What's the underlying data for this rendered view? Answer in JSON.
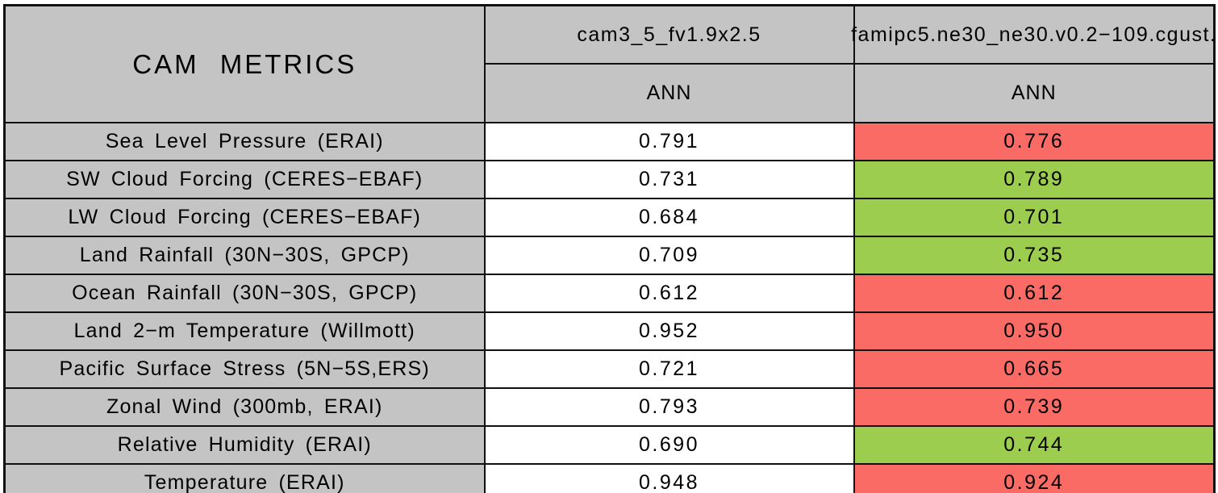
{
  "table": {
    "title": "CAM METRICS",
    "columns": [
      {
        "model": "cam3_5_fv1.9x2.5",
        "season": "ANN"
      },
      {
        "model": "famipc5.ne30_ne30.v0.2−109.cgust.",
        "season": "ANN"
      }
    ],
    "rows": [
      {
        "metric": "Sea Level Pressure (ERAI)",
        "values": [
          "0.791",
          "0.776"
        ],
        "highlight2": "red"
      },
      {
        "metric": "SW Cloud Forcing (CERES−EBAF)",
        "values": [
          "0.731",
          "0.789"
        ],
        "highlight2": "green"
      },
      {
        "metric": "LW Cloud Forcing (CERES−EBAF)",
        "values": [
          "0.684",
          "0.701"
        ],
        "highlight2": "green"
      },
      {
        "metric": "Land Rainfall (30N−30S, GPCP)",
        "values": [
          "0.709",
          "0.735"
        ],
        "highlight2": "green"
      },
      {
        "metric": "Ocean Rainfall (30N−30S, GPCP)",
        "values": [
          "0.612",
          "0.612"
        ],
        "highlight2": "red"
      },
      {
        "metric": "Land 2−m Temperature (Willmott)",
        "values": [
          "0.952",
          "0.950"
        ],
        "highlight2": "red"
      },
      {
        "metric": "Pacific Surface Stress (5N−5S,ERS)",
        "values": [
          "0.721",
          "0.665"
        ],
        "highlight2": "red"
      },
      {
        "metric": "Zonal Wind (300mb, ERAI)",
        "values": [
          "0.793",
          "0.739"
        ],
        "highlight2": "red"
      },
      {
        "metric": "Relative Humidity (ERAI)",
        "values": [
          "0.690",
          "0.744"
        ],
        "highlight2": "green"
      },
      {
        "metric": "Temperature (ERAI)",
        "values": [
          "0.948",
          "0.924"
        ],
        "highlight2": "red"
      }
    ]
  },
  "colors": {
    "header_blue": "#6495ED",
    "cell_gray": "#C4C4C4",
    "highlight_red": "#FB6B66",
    "highlight_green": "#9CCD4F",
    "border_black": "#111111",
    "value_white": "#FFFFFF"
  },
  "chart_data": {
    "type": "table",
    "title": "CAM METRICS",
    "metrics": [
      "Sea Level Pressure (ERAI)",
      "SW Cloud Forcing (CERES−EBAF)",
      "LW Cloud Forcing (CERES−EBAF)",
      "Land Rainfall (30N−30S, GPCP)",
      "Ocean Rainfall (30N−30S, GPCP)",
      "Land 2−m Temperature (Willmott)",
      "Pacific Surface Stress (5N−5S,ERS)",
      "Zonal Wind (300mb, ERAI)",
      "Relative Humidity (ERAI)",
      "Temperature (ERAI)"
    ],
    "series": [
      {
        "name": "cam3_5_fv1.9x2.5",
        "season": "ANN",
        "values": [
          0.791,
          0.731,
          0.684,
          0.709,
          0.612,
          0.952,
          0.721,
          0.793,
          0.69,
          0.948
        ],
        "cell_colors": [
          "white",
          "white",
          "white",
          "white",
          "white",
          "white",
          "white",
          "white",
          "white",
          "white"
        ]
      },
      {
        "name": "famipc5.ne30_ne30.v0.2−109.cgust.",
        "season": "ANN",
        "values": [
          0.776,
          0.789,
          0.701,
          0.735,
          0.612,
          0.95,
          0.665,
          0.739,
          0.744,
          0.924
        ],
        "cell_colors": [
          "red",
          "green",
          "green",
          "green",
          "red",
          "red",
          "red",
          "red",
          "green",
          "red"
        ]
      }
    ],
    "layout_hints": {
      "header_fill": "#6495ED",
      "label_fill": "#C4C4C4",
      "red_fill": "#FB6B66",
      "green_fill": "#9CCD4F",
      "grid": true
    }
  }
}
